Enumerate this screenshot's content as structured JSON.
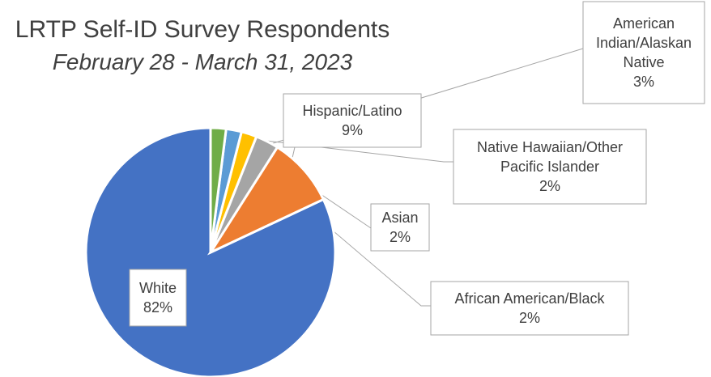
{
  "chart_data": {
    "type": "pie",
    "title": "LRTP Self-ID Survey Respondents",
    "subtitle": "February 28 - March 31, 2023",
    "start_angle_deg": 90,
    "direction": "counterclockwise",
    "slices": [
      {
        "label": "White",
        "label_lines": [
          "White"
        ],
        "display": "82%",
        "value": 82,
        "color": "#4472C4"
      },
      {
        "label": "Hispanic/Latino",
        "label_lines": [
          "Hispanic/Latino"
        ],
        "display": "9%",
        "value": 9,
        "color": "#ED7D31"
      },
      {
        "label": "American Indian/Alaskan Native",
        "label_lines": [
          "American",
          "Indian/Alaskan",
          "Native"
        ],
        "display": "3%",
        "value": 3,
        "color": "#A5A5A5"
      },
      {
        "label": "Native Hawaiian/Other Pacific Islander",
        "label_lines": [
          "Native Hawaiian/Other",
          "Pacific Islander"
        ],
        "display": "2%",
        "value": 2,
        "color": "#FFC000"
      },
      {
        "label": "Asian",
        "label_lines": [
          "Asian"
        ],
        "display": "2%",
        "value": 2,
        "color": "#5B9BD5"
      },
      {
        "label": "African American/Black",
        "label_lines": [
          "African American/Black"
        ],
        "display": "2%",
        "value": 2,
        "color": "#70AD47"
      }
    ]
  }
}
